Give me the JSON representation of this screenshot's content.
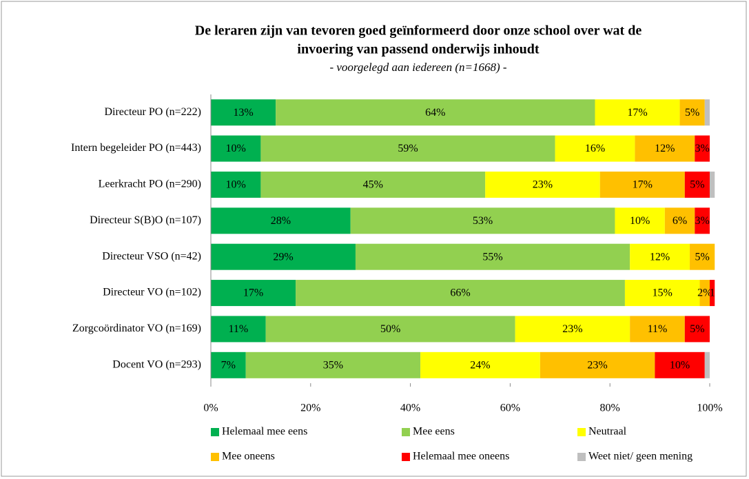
{
  "chart_data": {
    "type": "stacked_bar_horizontal",
    "title": [
      "De leraren zijn van tevoren goed geïnformeerd door onze school over wat de",
      "invoering van passend onderwijs inhoudt"
    ],
    "subtitle": "- voorgelegd aan iedereen (n=1668) -",
    "categories": [
      "Directeur PO (n=222)",
      "Intern begeleider PO (n=443)",
      "Leerkracht PO (n=290)",
      "Directeur S(B)O (n=107)",
      "Directeur VSO (n=42)",
      "Directeur VO (n=102)",
      "Zorgcoördinator VO (n=169)",
      "Docent VO (n=293)"
    ],
    "series": [
      {
        "name": "Helemaal mee eens",
        "color": "#00b050",
        "values": [
          13,
          10,
          10,
          28,
          29,
          17,
          11,
          7
        ],
        "value_labels": [
          "13%",
          "10%",
          "10%",
          "28%",
          "29%",
          "17%",
          "11%",
          "7%"
        ]
      },
      {
        "name": "Mee eens",
        "color": "#92d050",
        "values": [
          64,
          59,
          45,
          53,
          55,
          66,
          50,
          35
        ],
        "value_labels": [
          "64%",
          "59%",
          "45%",
          "53%",
          "55%",
          "66%",
          "50%",
          "35%"
        ]
      },
      {
        "name": "Neutraal",
        "color": "#ffff00",
        "values": [
          17,
          16,
          23,
          10,
          12,
          15,
          23,
          24
        ],
        "value_labels": [
          "17%",
          "16%",
          "23%",
          "10%",
          "12%",
          "15%",
          "23%",
          "24%"
        ]
      },
      {
        "name": "Mee oneens",
        "color": "#ffc000",
        "values": [
          5,
          12,
          17,
          6,
          5,
          2,
          11,
          23
        ],
        "value_labels": [
          "5%",
          "12%",
          "17%",
          "6%",
          "5%",
          "2%",
          "11%",
          "23%"
        ]
      },
      {
        "name": "Helemaal mee oneens",
        "color": "#ff0000",
        "values": [
          0,
          3,
          5,
          3,
          0,
          1,
          5,
          10
        ],
        "value_labels": [
          null,
          "3%",
          "5%",
          "3%",
          null,
          "1",
          "5%",
          "10%"
        ]
      },
      {
        "name": "Weet niet/ geen mening",
        "color": "#bfbfbf",
        "values": [
          1,
          0,
          1,
          0,
          0,
          0,
          0,
          1
        ],
        "value_labels": [
          null,
          null,
          null,
          null,
          null,
          null,
          null,
          null
        ]
      }
    ],
    "xlim": [
      0,
      100
    ],
    "xticks": [
      {
        "value": 0,
        "label": "0%"
      },
      {
        "value": 20,
        "label": "20%"
      },
      {
        "value": 40,
        "label": "40%"
      },
      {
        "value": 60,
        "label": "60%"
      },
      {
        "value": 80,
        "label": "80%"
      },
      {
        "value": 100,
        "label": "100%"
      }
    ],
    "legend": "bottom"
  }
}
